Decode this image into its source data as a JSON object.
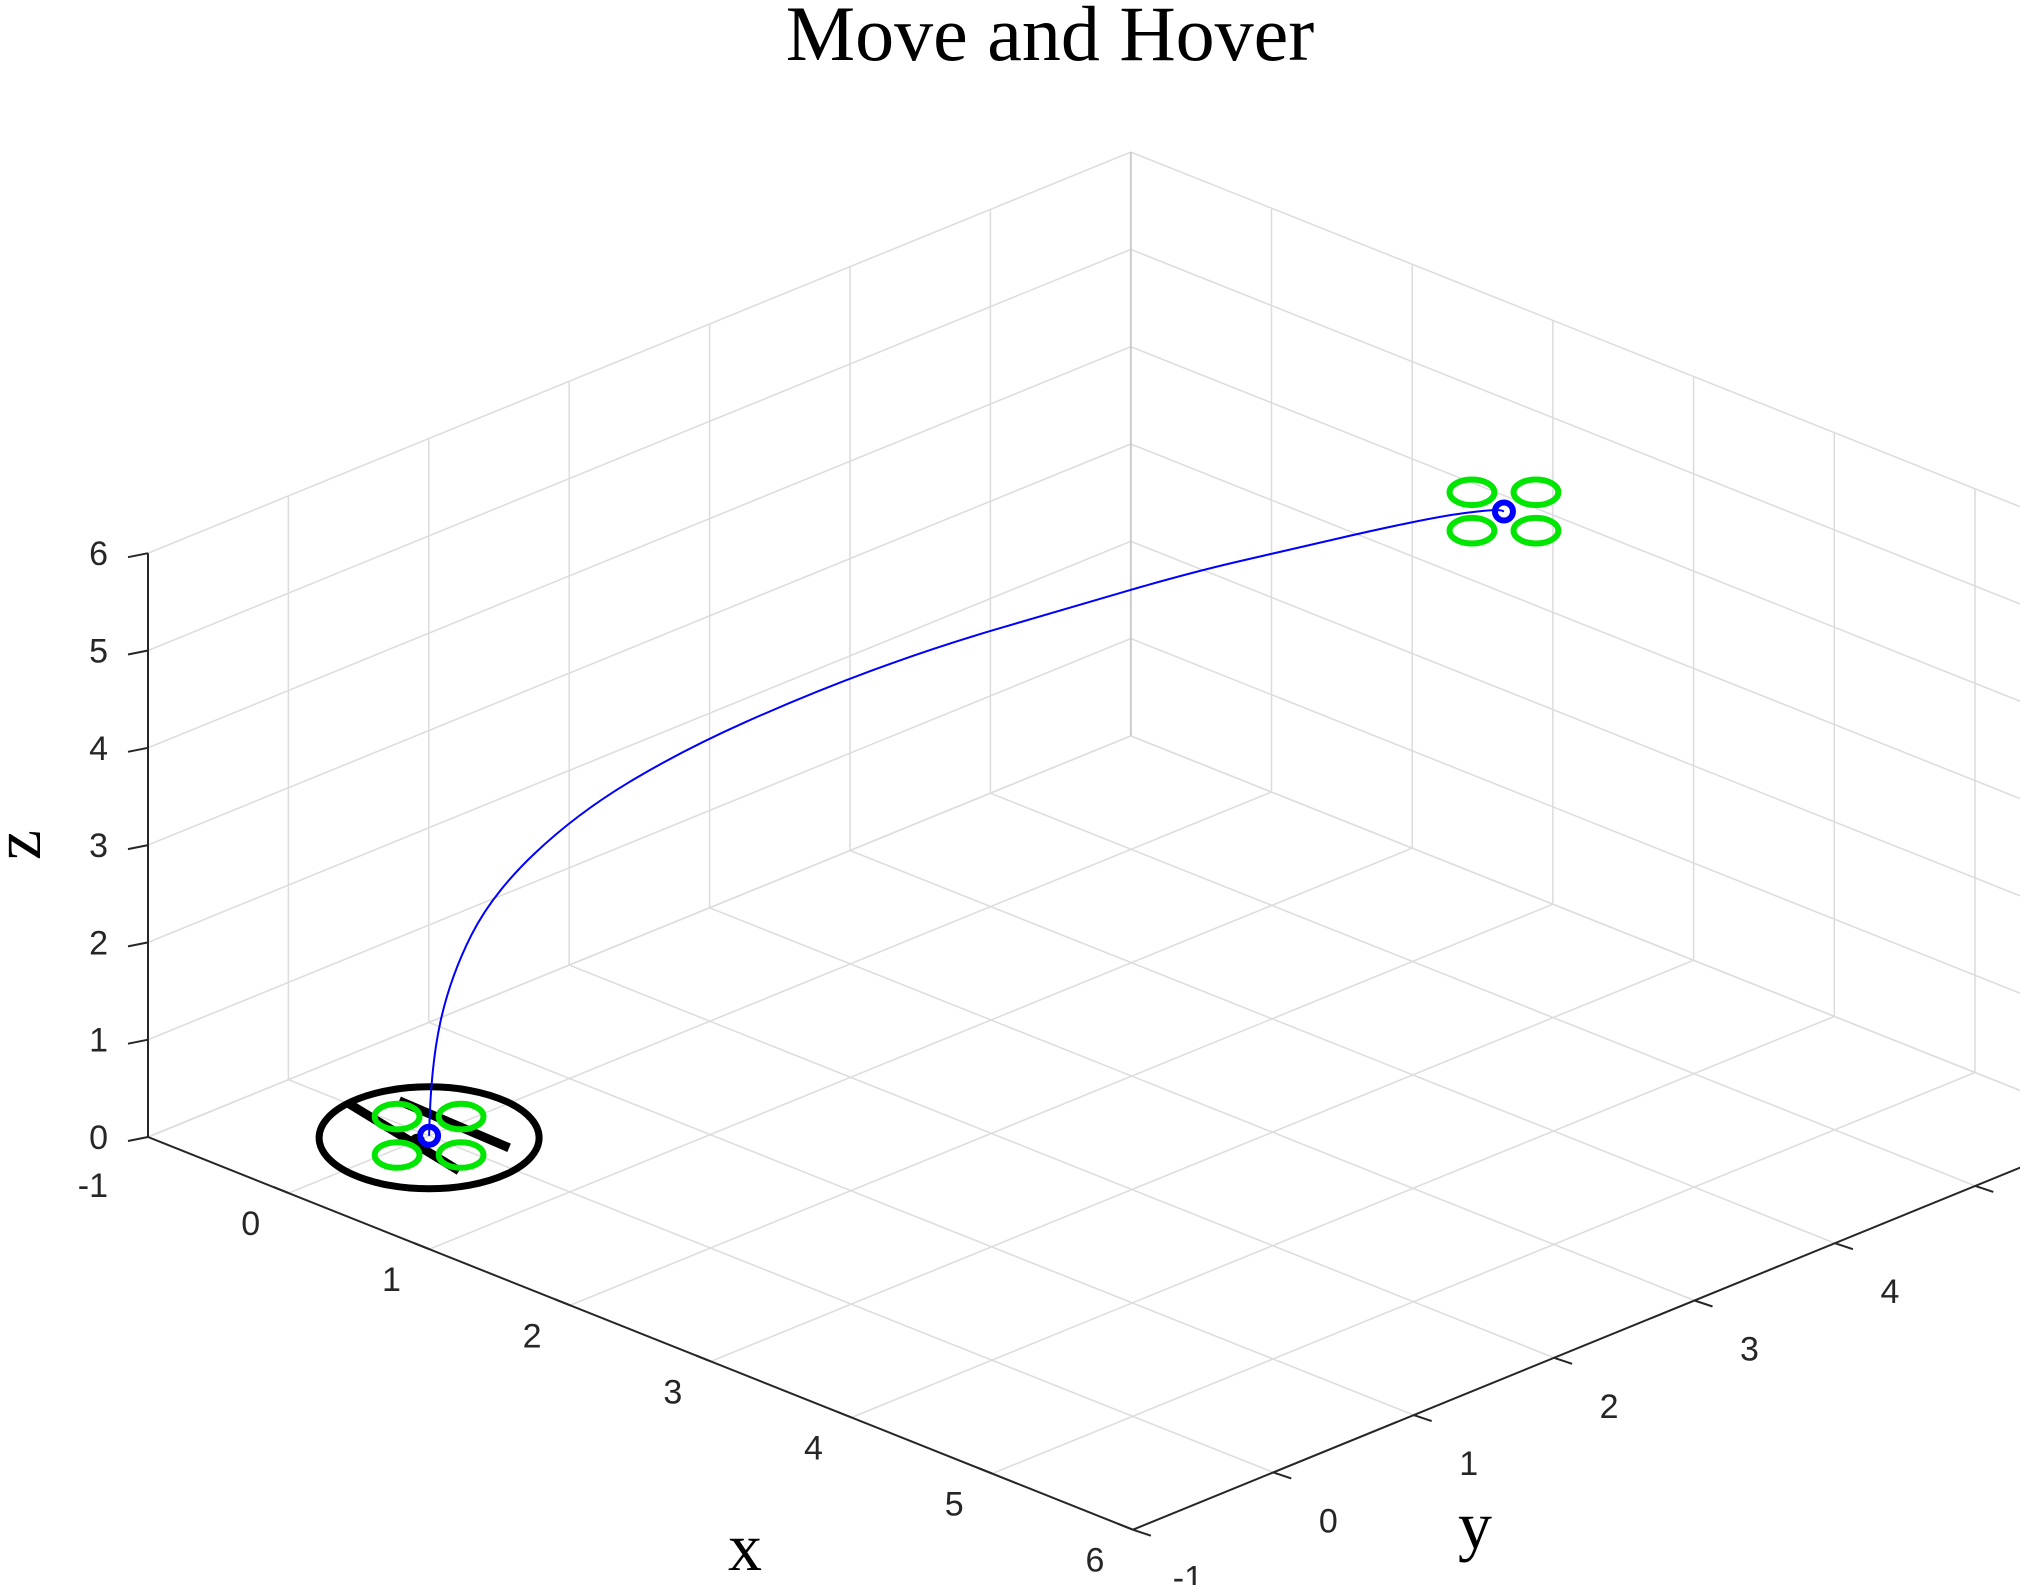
{
  "chart_data": {
    "type": "line3d",
    "title": "Move and Hover",
    "xlabel": "x",
    "ylabel": "y",
    "zlabel": "z",
    "xlim": [
      -1,
      6
    ],
    "ylim": [
      -1,
      6
    ],
    "zlim": [
      0,
      6
    ],
    "x_ticks": [
      "0",
      "1",
      "2",
      "3",
      "4",
      "5",
      "6"
    ],
    "y_ticks": [
      "-1",
      "0",
      "1",
      "2",
      "3",
      "4",
      "5",
      "6"
    ],
    "z_ticks": [
      "-1",
      "0",
      "1",
      "2",
      "3",
      "4",
      "5",
      "6"
    ],
    "grid": true,
    "colors": {
      "trajectory": "#0000ff",
      "rotor": "#00e600",
      "hub": "#0000ff",
      "landing_pad": "#000000",
      "grid": "#dcdcdc",
      "axis": "#262626"
    },
    "series": [
      {
        "x": [
          0,
          0,
          0.05,
          0.15,
          0.35,
          0.6,
          0.9,
          1.2,
          1.5,
          1.8,
          2.05,
          2.25,
          2.42,
          2.55,
          2.62,
          2.65
        ],
        "y": [
          0,
          0.01,
          0.1,
          0.3,
          0.7,
          1.2,
          1.8,
          2.4,
          3.0,
          3.6,
          4.1,
          4.5,
          4.8,
          4.95,
          5.0,
          5.0
        ],
        "z": [
          0,
          0.7,
          1.6,
          2.4,
          3.1,
          3.6,
          4.0,
          4.3,
          4.5,
          4.7,
          4.8,
          4.88,
          4.94,
          4.98,
          5.0,
          5.0
        ]
      }
    ],
    "markers": [
      {
        "type": "landing_pad",
        "x": 0,
        "y": 0,
        "z": 0
      },
      {
        "type": "quadrotor",
        "x": 0,
        "y": 0,
        "z": 0
      },
      {
        "type": "quadrotor",
        "x": 2.65,
        "y": 5.0,
        "z": 5.0
      }
    ]
  }
}
